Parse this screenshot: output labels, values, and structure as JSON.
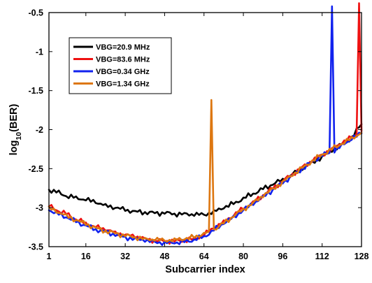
{
  "chart_data": {
    "type": "line",
    "title": "",
    "xlabel": "Subcarrier index",
    "ylabel": {
      "base": "log",
      "sub": "10",
      "rest": "(BER)"
    },
    "xlim": [
      1,
      128
    ],
    "ylim": [
      -3.5,
      -0.5
    ],
    "xticks": [
      1,
      16,
      32,
      48,
      64,
      80,
      96,
      112,
      128
    ],
    "yticks": [
      -0.5,
      -1,
      -1.5,
      -2,
      -2.5,
      -3,
      -3.5
    ],
    "ytick_labels": [
      "-0.5",
      "-1",
      "-1.5",
      "-2",
      "-2.5",
      "-3",
      "-3.5"
    ],
    "grid": false,
    "legend_position": "top-left",
    "series": [
      {
        "name": "VBG=20.9 MHz",
        "color": "#000000",
        "points": [
          [
            1,
            -2.77
          ],
          [
            4,
            -2.8
          ],
          [
            8,
            -2.85
          ],
          [
            12,
            -2.87
          ],
          [
            16,
            -2.9
          ],
          [
            20,
            -2.93
          ],
          [
            24,
            -2.97
          ],
          [
            28,
            -3.0
          ],
          [
            32,
            -3.03
          ],
          [
            36,
            -3.05
          ],
          [
            40,
            -3.06
          ],
          [
            44,
            -3.07
          ],
          [
            48,
            -3.07
          ],
          [
            52,
            -3.08
          ],
          [
            56,
            -3.08
          ],
          [
            60,
            -3.09
          ],
          [
            64,
            -3.09
          ],
          [
            68,
            -3.05
          ],
          [
            72,
            -3.0
          ],
          [
            76,
            -2.95
          ],
          [
            80,
            -2.88
          ],
          [
            84,
            -2.82
          ],
          [
            88,
            -2.76
          ],
          [
            92,
            -2.7
          ],
          [
            96,
            -2.64
          ],
          [
            100,
            -2.57
          ],
          [
            104,
            -2.5
          ],
          [
            108,
            -2.42
          ],
          [
            112,
            -2.35
          ],
          [
            116,
            -2.27
          ],
          [
            120,
            -2.19
          ],
          [
            124,
            -2.1
          ],
          [
            128,
            -1.93
          ]
        ]
      },
      {
        "name": "VBG=83.6 MHz",
        "color": "#ee1111",
        "points": [
          [
            1,
            -2.98
          ],
          [
            4,
            -3.03
          ],
          [
            8,
            -3.08
          ],
          [
            12,
            -3.15
          ],
          [
            16,
            -3.2
          ],
          [
            20,
            -3.25
          ],
          [
            24,
            -3.28
          ],
          [
            28,
            -3.32
          ],
          [
            32,
            -3.35
          ],
          [
            36,
            -3.37
          ],
          [
            40,
            -3.4
          ],
          [
            44,
            -3.42
          ],
          [
            48,
            -3.43
          ],
          [
            52,
            -3.43
          ],
          [
            56,
            -3.42
          ],
          [
            60,
            -3.4
          ],
          [
            64,
            -3.35
          ],
          [
            68,
            -3.26
          ],
          [
            72,
            -3.18
          ],
          [
            76,
            -3.1
          ],
          [
            80,
            -3.01
          ],
          [
            84,
            -2.93
          ],
          [
            88,
            -2.84
          ],
          [
            92,
            -2.75
          ],
          [
            96,
            -2.66
          ],
          [
            100,
            -2.57
          ],
          [
            104,
            -2.48
          ],
          [
            108,
            -2.4
          ],
          [
            112,
            -2.32
          ],
          [
            116,
            -2.25
          ],
          [
            120,
            -2.17
          ],
          [
            124,
            -2.1
          ],
          [
            126,
            -2.06
          ],
          [
            127,
            -0.38
          ],
          [
            128,
            -2.02
          ]
        ]
      },
      {
        "name": "VBG=0.34 GHz",
        "color": "#1122ee",
        "points": [
          [
            1,
            -3.03
          ],
          [
            4,
            -3.07
          ],
          [
            8,
            -3.12
          ],
          [
            12,
            -3.18
          ],
          [
            16,
            -3.23
          ],
          [
            20,
            -3.28
          ],
          [
            24,
            -3.31
          ],
          [
            28,
            -3.35
          ],
          [
            32,
            -3.38
          ],
          [
            36,
            -3.4
          ],
          [
            40,
            -3.42
          ],
          [
            44,
            -3.44
          ],
          [
            48,
            -3.45
          ],
          [
            52,
            -3.45
          ],
          [
            56,
            -3.44
          ],
          [
            60,
            -3.41
          ],
          [
            64,
            -3.37
          ],
          [
            68,
            -3.29
          ],
          [
            72,
            -3.2
          ],
          [
            76,
            -3.12
          ],
          [
            80,
            -3.03
          ],
          [
            84,
            -2.95
          ],
          [
            88,
            -2.86
          ],
          [
            92,
            -2.77
          ],
          [
            96,
            -2.68
          ],
          [
            100,
            -2.59
          ],
          [
            104,
            -2.5
          ],
          [
            108,
            -2.41
          ],
          [
            112,
            -2.33
          ],
          [
            115,
            -2.3
          ],
          [
            116,
            -0.42
          ],
          [
            117,
            -2.28
          ],
          [
            120,
            -2.2
          ],
          [
            124,
            -2.12
          ],
          [
            128,
            -2.05
          ]
        ]
      },
      {
        "name": "VBG=1.34 GHz",
        "color": "#dd7711",
        "points": [
          [
            1,
            -3.0
          ],
          [
            4,
            -3.05
          ],
          [
            8,
            -3.1
          ],
          [
            12,
            -3.16
          ],
          [
            16,
            -3.21
          ],
          [
            20,
            -3.26
          ],
          [
            24,
            -3.3
          ],
          [
            28,
            -3.33
          ],
          [
            32,
            -3.36
          ],
          [
            36,
            -3.38
          ],
          [
            40,
            -3.4
          ],
          [
            44,
            -3.41
          ],
          [
            48,
            -3.42
          ],
          [
            52,
            -3.41
          ],
          [
            56,
            -3.4
          ],
          [
            60,
            -3.38
          ],
          [
            64,
            -3.33
          ],
          [
            66,
            -3.3
          ],
          [
            67,
            -1.62
          ],
          [
            68,
            -3.28
          ],
          [
            72,
            -3.2
          ],
          [
            76,
            -3.11
          ],
          [
            80,
            -3.02
          ],
          [
            84,
            -2.94
          ],
          [
            88,
            -2.85
          ],
          [
            92,
            -2.76
          ],
          [
            96,
            -2.67
          ],
          [
            100,
            -2.58
          ],
          [
            104,
            -2.49
          ],
          [
            108,
            -2.4
          ],
          [
            112,
            -2.32
          ],
          [
            116,
            -2.25
          ],
          [
            120,
            -2.18
          ],
          [
            124,
            -2.11
          ],
          [
            128,
            -2.04
          ]
        ]
      }
    ]
  }
}
